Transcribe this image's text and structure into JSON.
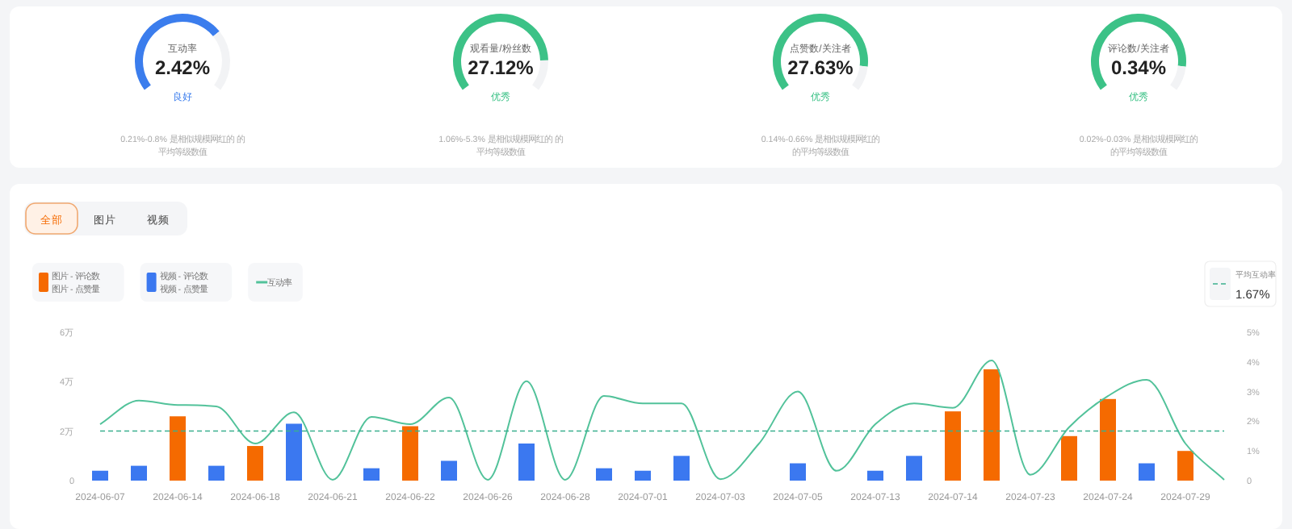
{
  "chart_data": [
    {
      "type": "donut",
      "title": "互动率",
      "categories": [
        null,
        null
      ],
      "values": [
        70,
        30
      ],
      "colors": [
        "#3b7ded",
        "#f2f3f5"
      ],
      "annotations": [
        "2.42%",
        "良好",
        "0.21%-0.8% 是相似规模网红的 的平均等级数值"
      ]
    },
    {
      "type": "donut",
      "title": "观看量/粉丝数",
      "categories": [
        null,
        null
      ],
      "values": [
        85,
        15
      ],
      "colors": [
        "#3cc287",
        "#f2f3f5"
      ],
      "annotations": [
        "27.12%",
        "优秀",
        "1.06%-5.3% 是相似规模网红的 的平均等级数值"
      ]
    },
    {
      "type": "donut",
      "title": "点赞数/关注者",
      "categories": [
        null,
        null
      ],
      "values": [
        88,
        12
      ],
      "colors": [
        "#3cc287",
        "#f2f3f5"
      ],
      "annotations": [
        "27.63%",
        "优秀",
        "0.14%-0.66% 是相似规模网红的的平均等级数值"
      ]
    },
    {
      "type": "donut",
      "title": "评论数/关注者",
      "categories": [
        null,
        null
      ],
      "values": [
        88,
        12
      ],
      "colors": [
        "#3cc287",
        "#f2f3f5"
      ],
      "annotations": [
        "0.34%",
        "优秀",
        "0.02%-0.03% 是相似规模网红的的平均等级数值"
      ]
    },
    {
      "type": "bar",
      "annotations": [
        "全部",
        "图片",
        "视频"
      ],
      "legend": "top left",
      "categories": [
        "2024-06-07",
        null,
        "2024-06-14",
        null,
        "2024-06-18",
        null,
        "2024-06-21",
        null,
        "2024-06-22",
        null,
        "2024-06-26",
        null,
        "2024-06-28",
        null,
        "2024-07-01",
        null,
        "2024-07-03",
        null,
        "2024-07-05",
        null,
        "2024-07-13",
        null,
        "2024-07-14",
        null,
        "2024-07-23",
        null,
        "2024-07-24",
        null,
        "2024-07-29",
        null
      ],
      "series": [
        {
          "name": "图片 - 评论数图片 - 点赞量",
          "color": "#f56a00",
          "values": [
            null,
            null,
            2.6,
            null,
            1.4,
            null,
            null,
            null,
            2.2,
            null,
            null,
            null,
            null,
            null,
            null,
            null,
            null,
            null,
            null,
            null,
            null,
            null,
            2.8,
            4.5,
            null,
            1.8,
            3.3,
            null,
            1.2,
            null
          ]
        },
        {
          "name": "视频 - 评论数视频 - 点赞量",
          "color": "#3b78f0",
          "values": [
            0.4,
            0.6,
            null,
            0.6,
            null,
            2.3,
            null,
            0.5,
            null,
            0.8,
            null,
            1.5,
            null,
            0.5,
            0.4,
            1.0,
            null,
            null,
            0.7,
            null,
            0.4,
            1.0,
            null,
            null,
            null,
            null,
            null,
            0.7,
            null,
            null
          ]
        },
        {
          "name": "互动率",
          "type": "line",
          "axis": "y2",
          "color": "#52c29a",
          "marker": "none",
          "values": [
            1.9,
            2.7,
            2.55,
            2.5,
            1.25,
            2.3,
            0.03,
            2.15,
            1.9,
            2.8,
            0.03,
            3.35,
            0.03,
            2.85,
            2.6,
            2.6,
            0.05,
            1.25,
            3.0,
            0.33,
            1.9,
            2.6,
            2.45,
            4.05,
            0.2,
            1.8,
            2.85,
            3.4,
            1.25,
            0.03
          ]
        }
      ],
      "ylim": [
        0,
        6
      ],
      "yticks": [
        0,
        {
          "value": 2,
          "label": "2万"
        },
        {
          "value": 4,
          "label": "4万"
        },
        {
          "value": 6,
          "label": "6万"
        }
      ],
      "y2lim": [
        0,
        5
      ],
      "y2ticks": [
        0,
        {
          "value": 1,
          "label": "1%"
        },
        {
          "value": 2,
          "label": "2%"
        },
        {
          "value": 3,
          "label": "3%"
        },
        {
          "value": 4,
          "label": "4%"
        },
        {
          "value": 5,
          "label": "5%"
        }
      ],
      "ref_lines": [
        {
          "axis": "y2",
          "value": 1.67,
          "label": "平均互动率\n1.67%",
          "color": "#3bb08f",
          "line_style": "dashed"
        }
      ]
    }
  ]
}
